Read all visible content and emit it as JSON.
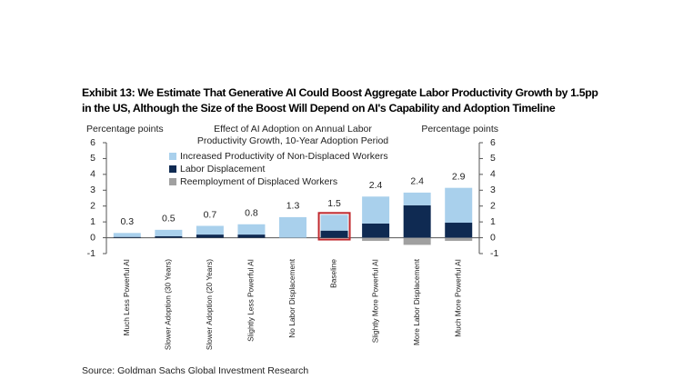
{
  "chart_data": {
    "type": "stacked_bar",
    "title": "Exhibit 13: We Estimate That Generative AI Could Boost Aggregate Labor Productivity Growth by 1.5pp in the US, Although the Size of the Boost Will Depend on AI's Capability and Adoption Timeline",
    "subtitle": [
      "Effect of AI Adoption on Annual Labor",
      "Productivity Growth, 10-Year Adoption Period"
    ],
    "y_label": "Percentage points",
    "y2_label": "Percentage points",
    "source": "Source: Goldman Sachs Global Investment Research",
    "categories": [
      "Much Less Powerful AI",
      "Slower Adoption (30 Years)",
      "Slower Adoption (20 Years)",
      "Slightly Less Powerful AI",
      "No Labor Displacement",
      "Baseline",
      "Slightly More Powerful AI",
      "More Labor Displacement",
      "Much More Powerful AI"
    ],
    "series": [
      {
        "name": "Increased Productivity of Non-Displaced Workers",
        "color": "#a9d0ec",
        "values": [
          0.25,
          0.4,
          0.55,
          0.65,
          1.3,
          1.0,
          1.7,
          0.8,
          2.2
        ]
      },
      {
        "name": "Labor Displacement",
        "color": "#0f2a52",
        "values": [
          0.05,
          0.1,
          0.2,
          0.2,
          0,
          0.45,
          0.9,
          2.05,
          0.95
        ]
      },
      {
        "name": "Reemployment of Displaced Workers",
        "color": "#a0a0a0",
        "values": [
          0,
          0,
          0,
          0,
          0,
          0,
          -0.2,
          -0.45,
          -0.2
        ]
      }
    ],
    "totals": [
      0.3,
      0.5,
      0.7,
      0.8,
      1.3,
      1.5,
      2.4,
      2.4,
      2.9
    ],
    "highlight_category": "Baseline",
    "highlight_color": "#c0282d",
    "ylim": [
      -1,
      6
    ],
    "yticks": [
      -1,
      0,
      1,
      2,
      3,
      4,
      5,
      6
    ]
  }
}
